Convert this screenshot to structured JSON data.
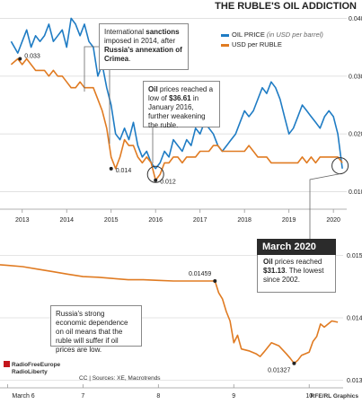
{
  "title": "THE RUBLE'S OIL ADDICTION",
  "legend": {
    "oil_label": "OIL PRICE",
    "oil_hint": "(in USD per barrel)",
    "usd_label": "USD per RUBLE",
    "oil_color": "#1f7cc4",
    "usd_color": "#e07b22"
  },
  "annotations": {
    "sanctions": {
      "pre": "International ",
      "bold1": "sanctions",
      "mid": " imposed in 2014, after ",
      "bold2": "Russia's annexation of Crimea",
      "post": "."
    },
    "oil_low": {
      "bold1": "Oil",
      "mid": " prices reached a low of ",
      "bold2": "$36.61",
      "post": " in January 2016, further weakening the ruble."
    },
    "dependence": "Russia's strong economic dependence on oil means that the ruble will suffer if oil prices are low.",
    "march": {
      "head": "March 2020",
      "bold1": "Oil",
      "mid": " prices reached ",
      "bold2": "$31.13",
      "post": ". The lowest since 2002."
    }
  },
  "chart_data": [
    {
      "type": "line",
      "x_ticks": [
        "2013",
        "2014",
        "2015",
        "2016",
        "2017",
        "2018",
        "2019",
        "2020"
      ],
      "y_right_ticks": [
        "0.010",
        "0.020",
        "0.030",
        "0.040"
      ],
      "y_right_range": [
        0.009,
        0.041
      ],
      "series": [
        {
          "name": "OIL PRICE",
          "x": [
            2012.75,
            2012.9,
            2013.0,
            2013.1,
            2013.2,
            2013.3,
            2013.4,
            2013.5,
            2013.6,
            2013.7,
            2013.8,
            2013.9,
            2014.0,
            2014.1,
            2014.2,
            2014.3,
            2014.4,
            2014.5,
            2014.6,
            2014.7,
            2014.8,
            2014.9,
            2015.0,
            2015.1,
            2015.2,
            2015.3,
            2015.4,
            2015.5,
            2015.6,
            2015.7,
            2015.8,
            2015.9,
            2016.0,
            2016.1,
            2016.2,
            2016.3,
            2016.4,
            2016.5,
            2016.6,
            2016.7,
            2016.8,
            2016.9,
            2017.0,
            2017.1,
            2017.2,
            2017.3,
            2017.4,
            2017.5,
            2017.6,
            2017.7,
            2017.8,
            2017.9,
            2018.0,
            2018.1,
            2018.2,
            2018.3,
            2018.4,
            2018.5,
            2018.6,
            2018.7,
            2018.8,
            2018.9,
            2019.0,
            2019.1,
            2019.2,
            2019.3,
            2019.4,
            2019.5,
            2019.6,
            2019.7,
            2019.8,
            2019.9,
            2020.0,
            2020.1,
            2020.2
          ],
          "values": [
            0.036,
            0.034,
            0.036,
            0.038,
            0.035,
            0.037,
            0.036,
            0.037,
            0.039,
            0.036,
            0.037,
            0.038,
            0.035,
            0.04,
            0.039,
            0.037,
            0.039,
            0.036,
            0.035,
            0.03,
            0.032,
            0.028,
            0.025,
            0.02,
            0.019,
            0.021,
            0.019,
            0.022,
            0.018,
            0.016,
            0.017,
            0.015,
            0.014,
            0.015,
            0.017,
            0.016,
            0.019,
            0.018,
            0.017,
            0.019,
            0.018,
            0.021,
            0.02,
            0.022,
            0.021,
            0.02,
            0.018,
            0.017,
            0.018,
            0.019,
            0.02,
            0.022,
            0.024,
            0.023,
            0.024,
            0.026,
            0.028,
            0.027,
            0.029,
            0.028,
            0.026,
            0.023,
            0.02,
            0.021,
            0.023,
            0.025,
            0.024,
            0.023,
            0.022,
            0.021,
            0.023,
            0.024,
            0.023,
            0.02,
            0.014
          ]
        },
        {
          "name": "USD per RUBLE",
          "x": [
            2012.75,
            2012.9,
            2013.0,
            2013.1,
            2013.2,
            2013.3,
            2013.4,
            2013.5,
            2013.6,
            2013.7,
            2013.8,
            2013.9,
            2014.0,
            2014.1,
            2014.2,
            2014.3,
            2014.4,
            2014.5,
            2014.6,
            2014.7,
            2014.8,
            2014.9,
            2015.0,
            2015.1,
            2015.2,
            2015.3,
            2015.4,
            2015.5,
            2015.6,
            2015.7,
            2015.8,
            2015.9,
            2016.0,
            2016.1,
            2016.2,
            2016.3,
            2016.4,
            2016.5,
            2016.6,
            2016.7,
            2016.8,
            2016.9,
            2017.0,
            2017.1,
            2017.2,
            2017.3,
            2017.4,
            2017.5,
            2017.6,
            2017.7,
            2017.8,
            2017.9,
            2018.0,
            2018.1,
            2018.2,
            2018.3,
            2018.4,
            2018.5,
            2018.6,
            2018.7,
            2018.8,
            2018.9,
            2019.0,
            2019.1,
            2019.2,
            2019.3,
            2019.4,
            2019.5,
            2019.6,
            2019.7,
            2019.8,
            2019.9,
            2020.0,
            2020.1,
            2020.2
          ],
          "values": [
            0.032,
            0.033,
            0.032,
            0.033,
            0.032,
            0.031,
            0.031,
            0.031,
            0.03,
            0.031,
            0.03,
            0.03,
            0.029,
            0.028,
            0.028,
            0.029,
            0.028,
            0.028,
            0.028,
            0.026,
            0.024,
            0.021,
            0.016,
            0.014,
            0.016,
            0.019,
            0.018,
            0.018,
            0.016,
            0.015,
            0.016,
            0.015,
            0.012,
            0.013,
            0.015,
            0.015,
            0.016,
            0.016,
            0.015,
            0.016,
            0.016,
            0.016,
            0.017,
            0.017,
            0.017,
            0.018,
            0.018,
            0.017,
            0.017,
            0.017,
            0.017,
            0.017,
            0.017,
            0.018,
            0.017,
            0.016,
            0.016,
            0.016,
            0.015,
            0.015,
            0.015,
            0.015,
            0.015,
            0.015,
            0.015,
            0.016,
            0.015,
            0.016,
            0.015,
            0.016,
            0.016,
            0.016,
            0.016,
            0.016,
            0.015
          ]
        }
      ],
      "labels": [
        {
          "text": "0.033",
          "x": 2012.95,
          "y": 0.033
        },
        {
          "text": "0.014",
          "x": 2015.0,
          "y": 0.014
        },
        {
          "text": "0.012",
          "x": 2016.0,
          "y": 0.012
        }
      ]
    },
    {
      "type": "line",
      "x_ticks": [
        "March 6",
        "7",
        "8",
        "9",
        "10"
      ],
      "y_right_ticks": [
        "0.013",
        "0.014",
        "0.015"
      ],
      "y_right_range": [
        0.01305,
        0.01518
      ],
      "series": [
        {
          "name": "USD per RUBLE",
          "x": [
            5.9,
            6.0,
            6.2,
            6.4,
            6.6,
            6.8,
            7.0,
            7.2,
            7.4,
            7.6,
            7.8,
            8.0,
            8.2,
            8.4,
            8.6,
            8.75,
            8.8,
            8.85,
            8.9,
            8.95,
            9.0,
            9.05,
            9.1,
            9.2,
            9.3,
            9.35,
            9.4,
            9.5,
            9.6,
            9.7,
            9.75,
            9.8,
            9.85,
            9.9,
            10.0,
            10.05,
            10.1,
            10.15,
            10.2,
            10.3,
            10.38
          ],
          "values": [
            0.01485,
            0.01484,
            0.01482,
            0.01478,
            0.01474,
            0.0147,
            0.01466,
            0.01465,
            0.01463,
            0.01461,
            0.01461,
            0.0146,
            0.01459,
            0.01459,
            0.01459,
            0.01459,
            0.0144,
            0.0143,
            0.0141,
            0.01395,
            0.0136,
            0.01372,
            0.0135,
            0.01347,
            0.01342,
            0.01338,
            0.01345,
            0.0136,
            0.01355,
            0.01342,
            0.01335,
            0.01327,
            0.01332,
            0.0134,
            0.01345,
            0.01362,
            0.0137,
            0.0139,
            0.01385,
            0.01395,
            0.01393
          ]
        }
      ],
      "labels": [
        {
          "text": "0.01459",
          "x": 8.75,
          "y": 0.01459
        },
        {
          "text": "0.01327",
          "x": 9.8,
          "y": 0.01327
        }
      ]
    }
  ],
  "footer": {
    "logo_line1": "RadioFreeEurope",
    "logo_line2": "RadioLiberty",
    "sources": "CC | Sources: XE, Macrotrends",
    "credit": "RFE/RL Graphics"
  }
}
